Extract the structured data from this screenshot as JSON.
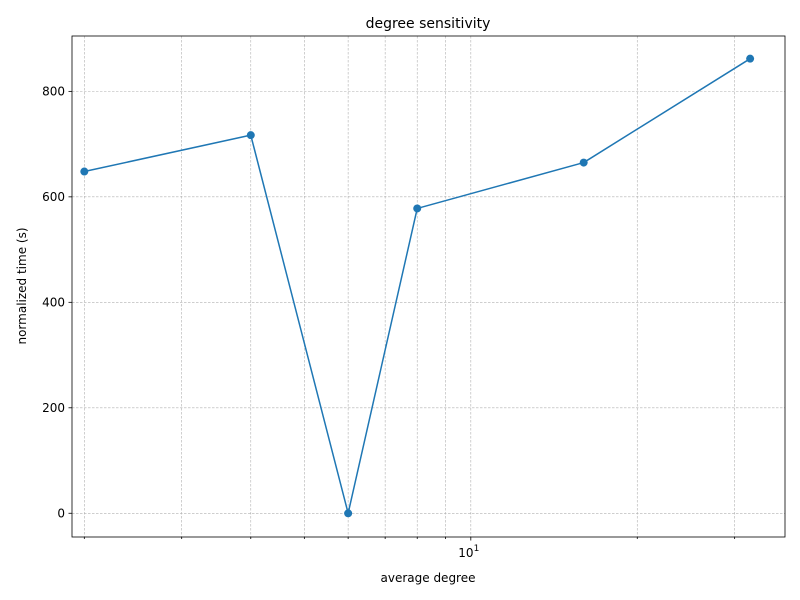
{
  "chart_data": {
    "type": "line",
    "title": "degree sensitivity",
    "xlabel": "average degree",
    "ylabel": "normalized time (s)",
    "x_scale": "log",
    "xlim": [
      1.9,
      37
    ],
    "ylim": [
      -45,
      905
    ],
    "x_major_ticks": [
      {
        "value": 10,
        "base": "10",
        "exp": "1"
      }
    ],
    "x_minor_ticks": [
      2,
      3,
      4,
      5,
      6,
      7,
      8,
      9,
      20,
      30
    ],
    "y_ticks": [
      0,
      200,
      400,
      600,
      800
    ],
    "grid": true,
    "series": [
      {
        "color": "#1f77b4",
        "marker": "circle",
        "x": [
          2,
          4,
          6,
          8,
          16,
          32
        ],
        "y": [
          648,
          717,
          0,
          578,
          665,
          862
        ]
      }
    ]
  }
}
